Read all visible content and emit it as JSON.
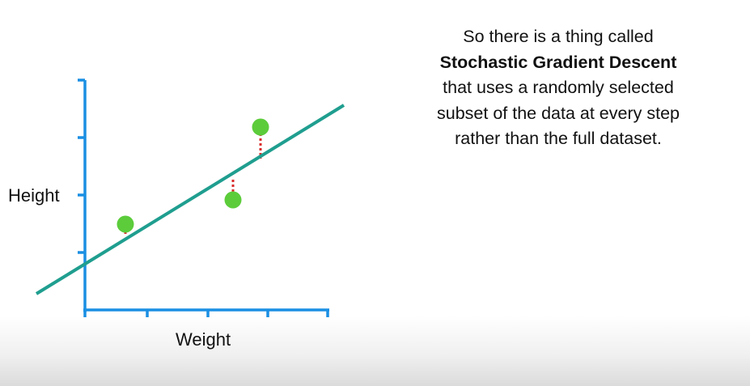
{
  "diagram": {
    "x_label": "Weight",
    "y_label": "Height",
    "colors": {
      "axis": "#1a8fe3",
      "fit_line": "#1f9e8f",
      "points": "#5ccc3b",
      "residuals": "#d92b2b"
    }
  },
  "caption": {
    "line1": "So there is a thing called",
    "line2": "Stochastic Gradient Descent",
    "line3": "that uses a randomly selected",
    "line4": "subset of the data at every step",
    "line5": "rather than the full dataset."
  }
}
